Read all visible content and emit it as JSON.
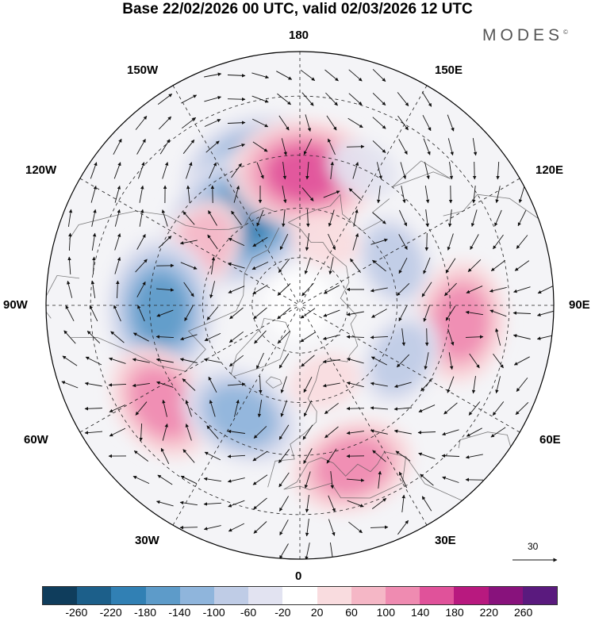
{
  "title": "Base 22/02/2026 00 UTC, valid 02/03/2026 12 UTC",
  "brand": "MODES",
  "brand_mark": "©",
  "longitude_labels": {
    "lon_180": "180",
    "lon_150w": "150W",
    "lon_150e": "150E",
    "lon_120w": "120W",
    "lon_120e": "120E",
    "lon_90w": "90W",
    "lon_90e": "90E",
    "lon_60w": "60W",
    "lon_60e": "60E",
    "lon_30w": "30W",
    "lon_30e": "30E",
    "lon_0": "0"
  },
  "reference_vector_label": "30",
  "colorbar": {
    "tick_labels": [
      "-260",
      "-220",
      "-180",
      "-140",
      "-100",
      "-60",
      "-20",
      "20",
      "60",
      "100",
      "140",
      "180",
      "220",
      "260"
    ],
    "colors": [
      "#0f3d5c",
      "#1c5f8a",
      "#3180b4",
      "#5d9bc9",
      "#8fb5dc",
      "#bfcce6",
      "#e2e3f1",
      "#ffffff",
      "#f9dcdf",
      "#f5b7c6",
      "#ef8bb1",
      "#e0529a",
      "#b8197f",
      "#88127c",
      "#5a1a7e"
    ]
  },
  "anomaly_centers": [
    {
      "name": "low-north-pacific-west",
      "lon": -161,
      "lat": 47,
      "value": -190
    },
    {
      "name": "low-north-pacific-east",
      "lon": -148,
      "lat": 58,
      "value": -200
    },
    {
      "name": "high-bering",
      "lon": 178,
      "lat": 50,
      "value": 160
    },
    {
      "name": "low-japan-east",
      "lon": 155,
      "lat": 45,
      "value": -60
    },
    {
      "name": "high-west-canada",
      "lon": -122,
      "lat": 55,
      "value": 110
    },
    {
      "name": "low-hudson",
      "lon": -88,
      "lat": 48,
      "value": -170
    },
    {
      "name": "low-siberia",
      "lon": 115,
      "lat": 58,
      "value": -110
    },
    {
      "name": "high-central-asia",
      "lon": 84,
      "lat": 42,
      "value": 120
    },
    {
      "name": "low-west-siberia",
      "lon": 62,
      "lat": 55,
      "value": -100
    },
    {
      "name": "high-atlantic",
      "lon": -55,
      "lat": 40,
      "value": 120
    },
    {
      "name": "low-iceland",
      "lon": -28,
      "lat": 52,
      "value": -150
    },
    {
      "name": "high-mediterranean",
      "lon": 18,
      "lat": 40,
      "value": 130
    },
    {
      "name": "high-scandinavia",
      "lon": 18,
      "lat": 65,
      "value": 60
    },
    {
      "name": "high-east-siberia",
      "lon": 160,
      "lat": 68,
      "value": 50
    }
  ]
}
